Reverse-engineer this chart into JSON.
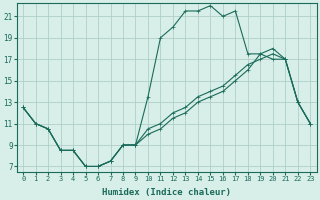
{
  "xlabel": "Humidex (Indice chaleur)",
  "bg_color": "#d8eee8",
  "grid_color": "#b0cfc8",
  "line_color": "#1a6b5a",
  "xlim": [
    -0.5,
    23.5
  ],
  "ylim": [
    6.5,
    22.2
  ],
  "xticks": [
    0,
    1,
    2,
    3,
    4,
    5,
    6,
    7,
    8,
    9,
    10,
    11,
    12,
    13,
    14,
    15,
    16,
    17,
    18,
    19,
    20,
    21,
    22,
    23
  ],
  "yticks": [
    7,
    9,
    11,
    13,
    15,
    17,
    19,
    21
  ],
  "line1_x": [
    0,
    1,
    2,
    3,
    4,
    5,
    6,
    7,
    8,
    9,
    10,
    11,
    12,
    13,
    14,
    15,
    16,
    17,
    18,
    19,
    20,
    21,
    22,
    23
  ],
  "line1_y": [
    12.5,
    11.0,
    10.5,
    8.5,
    8.5,
    7.0,
    7.0,
    7.5,
    9.0,
    9.0,
    13.5,
    19.0,
    20.0,
    21.5,
    21.5,
    22.0,
    21.0,
    21.5,
    17.5,
    17.5,
    17.0,
    17.0,
    13.0,
    11.0
  ],
  "line2_x": [
    0,
    1,
    2,
    3,
    4,
    5,
    6,
    7,
    8,
    9,
    10,
    11,
    12,
    13,
    14,
    15,
    16,
    17,
    18,
    19,
    20,
    21,
    22,
    23
  ],
  "line2_y": [
    12.5,
    11.0,
    10.5,
    8.5,
    8.5,
    7.0,
    7.0,
    7.5,
    9.0,
    9.0,
    10.0,
    10.5,
    11.5,
    12.0,
    13.0,
    13.5,
    14.0,
    15.0,
    16.0,
    17.5,
    18.0,
    17.0,
    13.0,
    11.0
  ],
  "line3_x": [
    0,
    1,
    2,
    3,
    4,
    5,
    6,
    7,
    8,
    9,
    10,
    11,
    12,
    13,
    14,
    15,
    16,
    17,
    18,
    19,
    20,
    21,
    22,
    23
  ],
  "line3_y": [
    12.5,
    11.0,
    10.5,
    8.5,
    8.5,
    7.0,
    7.0,
    7.5,
    9.0,
    9.0,
    10.5,
    11.0,
    12.0,
    12.5,
    13.5,
    14.0,
    14.5,
    15.5,
    16.5,
    17.0,
    17.5,
    17.0,
    13.0,
    11.0
  ]
}
